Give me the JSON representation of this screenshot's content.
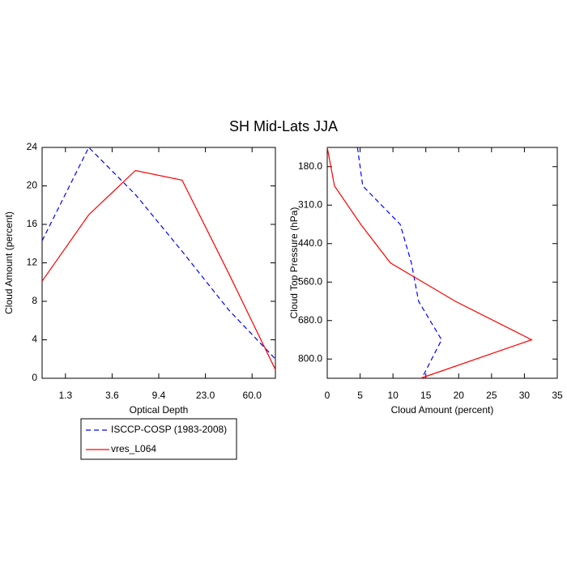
{
  "chart_data": [
    {
      "type": "line",
      "title": "SH Mid-Lats JJA",
      "xlabel": "Optical Depth",
      "ylabel": "Cloud Amount (percent)",
      "x": [
        0,
        1,
        2,
        3,
        4,
        5
      ],
      "xlim": [
        0,
        5
      ],
      "xticks": [
        {
          "value": 0.5,
          "label": "1.3"
        },
        {
          "value": 1.5,
          "label": "3.6"
        },
        {
          "value": 2.5,
          "label": "9.4"
        },
        {
          "value": 3.5,
          "label": "23.0"
        },
        {
          "value": 4.5,
          "label": "60.0"
        }
      ],
      "ylim": [
        0,
        24
      ],
      "yticks": [
        0,
        4,
        8,
        12,
        16,
        20,
        24
      ],
      "series": [
        {
          "name": "ISCCP-COSP (1983-2008)",
          "color": "#0000ff",
          "dashed": true,
          "values": [
            14.3,
            24,
            19.1,
            13.2,
            7.1,
            2.0
          ]
        },
        {
          "name": "vres_L064",
          "color": "#ff0000",
          "dashed": false,
          "values": [
            10.1,
            17.0,
            21.6,
            20.6,
            10.9,
            0.9
          ]
        }
      ]
    },
    {
      "type": "line",
      "orientation": "horizontal",
      "xlabel": "Cloud Amount (percent)",
      "ylabel": "Cloud Top Pressure (hPa)",
      "xlim": [
        0,
        35
      ],
      "xticks": [
        0,
        5,
        10,
        15,
        20,
        25,
        30,
        35
      ],
      "y": [
        0,
        1,
        2,
        3,
        4,
        5,
        6
      ],
      "ylim": [
        0,
        6
      ],
      "y_reversed": true,
      "yticks": [
        {
          "value": 0.5,
          "label": "180.0"
        },
        {
          "value": 1.5,
          "label": "310.0"
        },
        {
          "value": 2.5,
          "label": "440.0"
        },
        {
          "value": 3.5,
          "label": "560.0"
        },
        {
          "value": 4.5,
          "label": "680.0"
        },
        {
          "value": 5.5,
          "label": "800.0"
        }
      ],
      "series": [
        {
          "color": "#0000ff",
          "dashed": true,
          "values": [
            4.6,
            5.4,
            11.1,
            12.8,
            13.9,
            17.4,
            14.4
          ]
        },
        {
          "color": "#ff0000",
          "dashed": false,
          "values": [
            0,
            1.1,
            5.1,
            9.6,
            19.5,
            31.1,
            14.2
          ]
        }
      ]
    }
  ]
}
